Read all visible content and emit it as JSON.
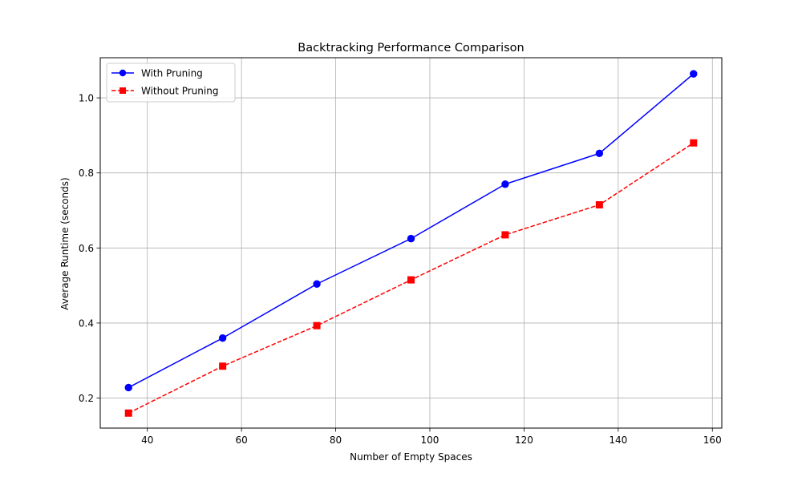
{
  "chart_data": {
    "type": "line",
    "title": "Backtracking Performance Comparison",
    "xlabel": "Number of Empty Spaces",
    "ylabel": "Average Runtime (seconds)",
    "x": [
      36,
      56,
      76,
      96,
      116,
      136,
      156
    ],
    "xlim": [
      30,
      162
    ],
    "ylim": [
      0.12,
      1.107
    ],
    "xticks": [
      40,
      60,
      80,
      100,
      120,
      140,
      160
    ],
    "yticks": [
      0.2,
      0.4,
      0.6,
      0.8,
      1.0
    ],
    "ytick_labels": [
      "0.2",
      "0.4",
      "0.6",
      "0.8",
      "1.0"
    ],
    "grid": true,
    "legend_position": "top-left",
    "series": [
      {
        "name": "With Pruning",
        "values": [
          0.228,
          0.36,
          0.504,
          0.625,
          0.77,
          0.852,
          1.064
        ],
        "color": "#0000ff",
        "line_style": "solid",
        "marker": "circle"
      },
      {
        "name": "Without Pruning",
        "values": [
          0.16,
          0.285,
          0.393,
          0.515,
          0.635,
          0.715,
          0.88
        ],
        "color": "#ff0000",
        "line_style": "dashed",
        "marker": "square"
      }
    ]
  }
}
